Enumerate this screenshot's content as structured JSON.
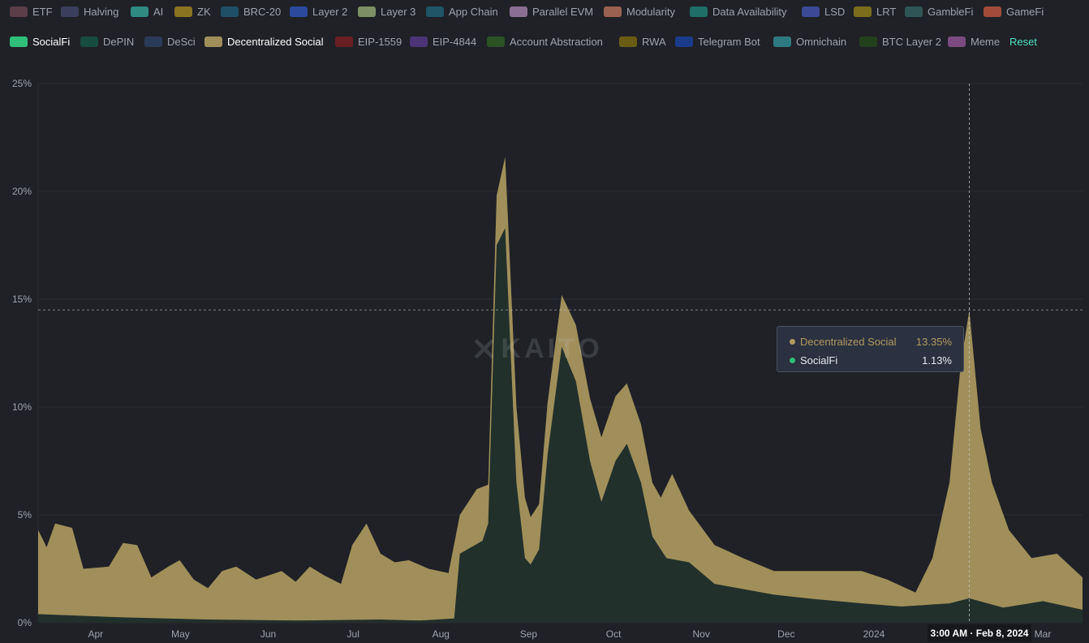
{
  "legend": {
    "row1": [
      {
        "label": "ETF",
        "color": "#5b3e47",
        "active": false
      },
      {
        "label": "Halving",
        "color": "#3b3e5c",
        "active": false
      },
      {
        "label": "AI",
        "color": "#2f8a82",
        "active": false
      },
      {
        "label": "ZK",
        "color": "#8a7421",
        "active": false
      },
      {
        "label": "BRC-20",
        "color": "#1f4f66",
        "active": false
      },
      {
        "label": "Layer 2",
        "color": "#2c4a9c",
        "active": false
      },
      {
        "label": "Layer 3",
        "color": "#7d8f64",
        "active": false
      },
      {
        "label": "App Chain",
        "color": "#1f5566",
        "active": false
      },
      {
        "label": "Parallel EVM",
        "color": "#8a6f93",
        "active": false
      },
      {
        "label": "Modularity",
        "color": "#9a6150",
        "active": false
      },
      {
        "label": "Data Availability",
        "color": "#1f6e68",
        "active": false
      },
      {
        "label": "LSD",
        "color": "#3c4996",
        "active": false
      },
      {
        "label": "LRT",
        "color": "#7a6e1d",
        "active": false
      },
      {
        "label": "GambleFi",
        "color": "#2f5556",
        "active": false
      },
      {
        "label": "GameFi",
        "color": "#a14c3a",
        "active": false
      }
    ],
    "row2": [
      {
        "label": "SocialFi",
        "color": "#2fbf7a",
        "active": true
      },
      {
        "label": "DePIN",
        "color": "#184c3f",
        "active": false
      },
      {
        "label": "DeSci",
        "color": "#2a3b5a",
        "active": false
      },
      {
        "label": "Decentralized Social",
        "color": "#a08f5a",
        "active": true
      },
      {
        "label": "EIP-1559",
        "color": "#6a1f24",
        "active": false
      },
      {
        "label": "EIP-4844",
        "color": "#4b3576",
        "active": false
      },
      {
        "label": "Account Abstraction",
        "color": "#2b5324",
        "active": false
      },
      {
        "label": "RWA",
        "color": "#6b5c14",
        "active": false
      },
      {
        "label": "Telegram Bot",
        "color": "#1a3a8c",
        "active": false
      },
      {
        "label": "Omnichain",
        "color": "#2e7a82",
        "active": false
      },
      {
        "label": "BTC Layer 2",
        "color": "#23401d",
        "active": false
      },
      {
        "label": "Meme",
        "color": "#7a4a80",
        "active": false
      }
    ],
    "reset_label": "Reset"
  },
  "watermark": "KAITO",
  "tooltip": {
    "rows": [
      {
        "name": "Decentralized Social",
        "value": "13.35%",
        "color": "#b29a5e"
      },
      {
        "name": "SocialFi",
        "value": "1.13%",
        "color": "#2fbf7a"
      }
    ]
  },
  "hover_x_label": "3:00 AM · Feb 8, 2024",
  "colors": {
    "background": "#1f2126",
    "grid": "#2a2d33",
    "decentralized_social": "#a08f5a",
    "socialfi_fill": "#22302b"
  },
  "chart_data": {
    "type": "area",
    "stacked": true,
    "y_unit": "%",
    "ylim": [
      0,
      25
    ],
    "y_ticks": [
      "0%",
      "5%",
      "10%",
      "15%",
      "20%",
      "25%"
    ],
    "x_range": [
      "2023-03-16",
      "2024-03-19"
    ],
    "x_ticks": [
      "Apr",
      "May",
      "Jun",
      "Jul",
      "Aug",
      "Sep",
      "Oct",
      "Nov",
      "Dec",
      "2024",
      "Mar"
    ],
    "grid": true,
    "hover": {
      "date": "2024-02-08",
      "crosshair_y": 14.5
    },
    "series": [
      {
        "name": "SocialFi",
        "color": "#22302b",
        "points": [
          [
            "2023-03-16",
            0.4
          ],
          [
            "2023-04-15",
            0.25
          ],
          [
            "2023-05-15",
            0.15
          ],
          [
            "2023-06-15",
            0.1
          ],
          [
            "2023-07-15",
            0.15
          ],
          [
            "2023-07-29",
            0.1
          ],
          [
            "2023-08-10",
            0.2
          ],
          [
            "2023-08-12",
            3.2
          ],
          [
            "2023-08-20",
            3.8
          ],
          [
            "2023-08-22",
            4.6
          ],
          [
            "2023-08-25",
            17.5
          ],
          [
            "2023-08-28",
            18.3
          ],
          [
            "2023-09-01",
            6.5
          ],
          [
            "2023-09-04",
            3.0
          ],
          [
            "2023-09-06",
            2.7
          ],
          [
            "2023-09-09",
            3.4
          ],
          [
            "2023-09-12",
            7.8
          ],
          [
            "2023-09-17",
            12.8
          ],
          [
            "2023-09-22",
            11.2
          ],
          [
            "2023-09-27",
            7.5
          ],
          [
            "2023-10-01",
            5.6
          ],
          [
            "2023-10-06",
            7.5
          ],
          [
            "2023-10-10",
            8.3
          ],
          [
            "2023-10-15",
            6.5
          ],
          [
            "2023-10-19",
            4.0
          ],
          [
            "2023-10-24",
            3.0
          ],
          [
            "2023-11-01",
            2.8
          ],
          [
            "2023-11-10",
            1.8
          ],
          [
            "2023-12-01",
            1.3
          ],
          [
            "2023-12-15",
            1.1
          ],
          [
            "2024-01-01",
            0.9
          ],
          [
            "2024-01-15",
            0.75
          ],
          [
            "2024-02-01",
            0.9
          ],
          [
            "2024-02-08",
            1.13
          ],
          [
            "2024-02-20",
            0.7
          ],
          [
            "2024-03-05",
            1.0
          ],
          [
            "2024-03-19",
            0.6
          ]
        ]
      },
      {
        "name": "Decentralized Social",
        "color": "#a08f5a",
        "points": [
          [
            "2023-03-16",
            4.3
          ],
          [
            "2023-03-19",
            3.5
          ],
          [
            "2023-03-22",
            4.6
          ],
          [
            "2023-03-28",
            4.4
          ],
          [
            "2023-04-01",
            2.5
          ],
          [
            "2023-04-10",
            2.6
          ],
          [
            "2023-04-15",
            3.7
          ],
          [
            "2023-04-20",
            3.6
          ],
          [
            "2023-04-25",
            2.1
          ],
          [
            "2023-05-01",
            2.6
          ],
          [
            "2023-05-05",
            2.9
          ],
          [
            "2023-05-10",
            2.0
          ],
          [
            "2023-05-15",
            1.6
          ],
          [
            "2023-05-20",
            2.4
          ],
          [
            "2023-05-25",
            2.6
          ],
          [
            "2023-06-01",
            2.0
          ],
          [
            "2023-06-10",
            2.4
          ],
          [
            "2023-06-15",
            1.9
          ],
          [
            "2023-06-20",
            2.6
          ],
          [
            "2023-06-25",
            2.2
          ],
          [
            "2023-07-01",
            1.8
          ],
          [
            "2023-07-05",
            3.6
          ],
          [
            "2023-07-10",
            4.6
          ],
          [
            "2023-07-15",
            3.2
          ],
          [
            "2023-07-20",
            2.8
          ],
          [
            "2023-07-25",
            2.9
          ],
          [
            "2023-08-01",
            2.5
          ],
          [
            "2023-08-08",
            2.3
          ],
          [
            "2023-08-12",
            5.0
          ],
          [
            "2023-08-18",
            6.2
          ],
          [
            "2023-08-22",
            6.4
          ],
          [
            "2023-08-25",
            19.8
          ],
          [
            "2023-08-28",
            21.6
          ],
          [
            "2023-09-01",
            10.0
          ],
          [
            "2023-09-04",
            5.8
          ],
          [
            "2023-09-06",
            4.9
          ],
          [
            "2023-09-09",
            5.5
          ],
          [
            "2023-09-12",
            10.2
          ],
          [
            "2023-09-17",
            15.2
          ],
          [
            "2023-09-22",
            13.8
          ],
          [
            "2023-09-27",
            10.4
          ],
          [
            "2023-10-01",
            8.6
          ],
          [
            "2023-10-06",
            10.5
          ],
          [
            "2023-10-10",
            11.1
          ],
          [
            "2023-10-15",
            9.2
          ],
          [
            "2023-10-19",
            6.5
          ],
          [
            "2023-10-22",
            5.8
          ],
          [
            "2023-10-26",
            6.9
          ],
          [
            "2023-11-01",
            5.2
          ],
          [
            "2023-11-10",
            3.6
          ],
          [
            "2023-11-20",
            3.0
          ],
          [
            "2023-12-01",
            2.4
          ],
          [
            "2023-12-15",
            2.4
          ],
          [
            "2024-01-01",
            2.4
          ],
          [
            "2024-01-10",
            2.0
          ],
          [
            "2024-01-20",
            1.4
          ],
          [
            "2024-01-26",
            3.0
          ],
          [
            "2024-02-01",
            6.5
          ],
          [
            "2024-02-05",
            12.0
          ],
          [
            "2024-02-08",
            14.48
          ],
          [
            "2024-02-12",
            9.0
          ],
          [
            "2024-02-16",
            6.5
          ],
          [
            "2024-02-22",
            4.3
          ],
          [
            "2024-03-01",
            3.0
          ],
          [
            "2024-03-10",
            3.2
          ],
          [
            "2024-03-19",
            2.1
          ]
        ]
      }
    ]
  }
}
